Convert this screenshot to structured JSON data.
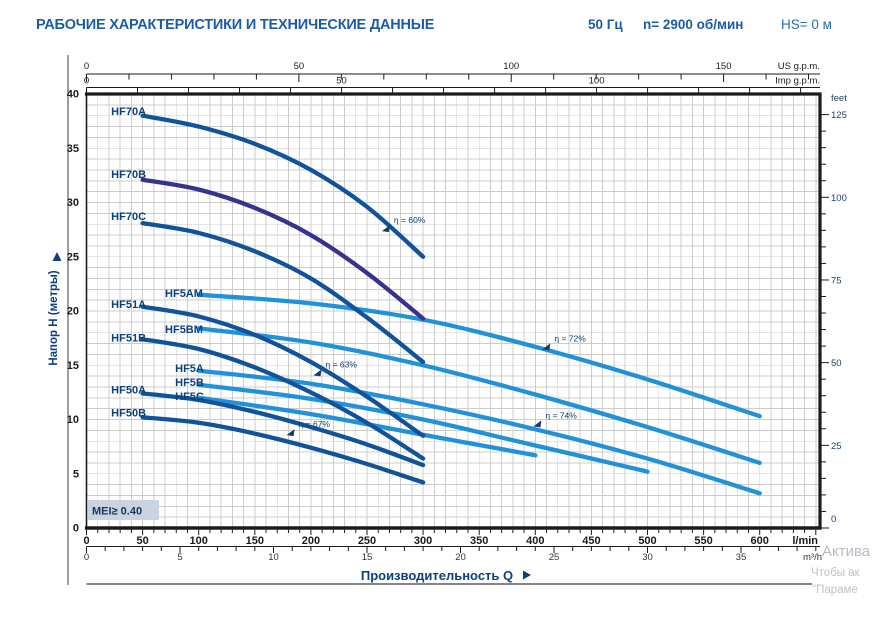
{
  "header": {
    "title": "РАБОЧИЕ ХАРАКТЕРИСТИКИ И ТЕХНИЧЕСКИЕ ДАННЫЕ",
    "frequency": "50 Гц",
    "speed": "n= 2900 об/мин",
    "suction": "HS= 0 м"
  },
  "colors": {
    "title_blue": "#1b5ca8",
    "curve_navy": "#11539b",
    "curve_purple": "#38328f",
    "curve_light_blue": "#2191d9",
    "grid": "#cccccc",
    "axis_black": "#1b1b1b",
    "pump_label_navy": "#0b3f7e",
    "efficiency_navy": "#123c6e",
    "feet_label": "#1f4166",
    "mei_bg": "#c9d4df",
    "mei_text": "#17365f",
    "watermark_gray": "#bcc2c9"
  },
  "mei_label": "MEI≥ 0.40",
  "watermark": {
    "line1": "Актива",
    "line2": "Чтобы ак",
    "line3": "\"Параме"
  },
  "chart_data": {
    "type": "line",
    "xlabel": "Производительность Q",
    "ylabel": "Напор H (метры)",
    "x_range_l_min": [
      0,
      650
    ],
    "y_range_m": [
      0,
      40
    ],
    "grid": "on",
    "x_axes": {
      "us_gpm": {
        "unit": "US g.p.m.",
        "ticks": [
          0,
          50,
          100,
          150
        ],
        "minor_step": 10,
        "max": 170
      },
      "imp_gpm": {
        "unit": "Imp g.p.m.",
        "ticks": [
          0,
          50,
          100
        ],
        "minor_step": 10,
        "max": 140
      },
      "l_min": {
        "unit": "l/min",
        "ticks": [
          0,
          50,
          100,
          150,
          200,
          250,
          300,
          350,
          400,
          450,
          500,
          550,
          600
        ],
        "minor_step": 10,
        "max": 650
      },
      "m3_h": {
        "unit": "m³/h",
        "ticks": [
          0,
          5,
          10,
          15,
          20,
          25,
          30,
          35
        ],
        "minor_step": 1,
        "max": 39
      }
    },
    "y_axes": {
      "meters": {
        "ticks": [
          0,
          5,
          10,
          15,
          20,
          25,
          30,
          35,
          40
        ]
      },
      "feet": {
        "unit": "feet",
        "ticks": [
          0,
          25,
          50,
          75,
          100,
          125
        ],
        "minor_step": 5,
        "max": 125
      }
    },
    "series": [
      {
        "name": "HF70A",
        "color_role": "navy",
        "label_q": 22,
        "label_h": 38.4,
        "points": [
          [
            50,
            38.0
          ],
          [
            100,
            37.0
          ],
          [
            150,
            35.4
          ],
          [
            200,
            33.0
          ],
          [
            250,
            29.6
          ],
          [
            300,
            25.0
          ]
        ]
      },
      {
        "name": "HF70B",
        "color_role": "purple",
        "label_q": 22,
        "label_h": 32.6,
        "points": [
          [
            50,
            32.1
          ],
          [
            100,
            31.2
          ],
          [
            150,
            29.5
          ],
          [
            200,
            27.0
          ],
          [
            250,
            23.5
          ],
          [
            300,
            19.3
          ]
        ]
      },
      {
        "name": "HF70C",
        "color_role": "navy",
        "label_q": 22,
        "label_h": 28.7,
        "points": [
          [
            50,
            28.1
          ],
          [
            100,
            27.2
          ],
          [
            150,
            25.5
          ],
          [
            200,
            23.0
          ],
          [
            250,
            19.4
          ],
          [
            300,
            15.3
          ]
        ]
      },
      {
        "name": "HF5AM",
        "color_role": "light",
        "label_q": 70,
        "label_h": 21.6,
        "points": [
          [
            100,
            21.5
          ],
          [
            200,
            20.7
          ],
          [
            300,
            19.2
          ],
          [
            400,
            16.7
          ],
          [
            500,
            13.7
          ],
          [
            600,
            10.3
          ]
        ]
      },
      {
        "name": "HF51A",
        "color_role": "navy",
        "label_q": 22,
        "label_h": 20.6,
        "points": [
          [
            50,
            20.4
          ],
          [
            100,
            19.5
          ],
          [
            150,
            17.8
          ],
          [
            200,
            15.3
          ],
          [
            250,
            12.1
          ],
          [
            300,
            8.5
          ]
        ]
      },
      {
        "name": "HF5BM",
        "color_role": "light",
        "label_q": 70,
        "label_h": 18.3,
        "points": [
          [
            100,
            18.4
          ],
          [
            200,
            17.1
          ],
          [
            300,
            15.0
          ],
          [
            400,
            12.3
          ],
          [
            500,
            9.3
          ],
          [
            600,
            6.0
          ]
        ]
      },
      {
        "name": "HF51B",
        "color_role": "navy",
        "label_q": 22,
        "label_h": 17.5,
        "points": [
          [
            50,
            17.4
          ],
          [
            100,
            16.5
          ],
          [
            150,
            14.8
          ],
          [
            200,
            12.5
          ],
          [
            250,
            9.7
          ],
          [
            300,
            6.4
          ]
        ]
      },
      {
        "name": "HF5A",
        "color_role": "light",
        "label_q": 79,
        "label_h": 14.7,
        "points": [
          [
            100,
            14.5
          ],
          [
            200,
            13.3
          ],
          [
            300,
            11.4
          ],
          [
            400,
            9.1
          ],
          [
            500,
            6.4
          ],
          [
            600,
            3.2
          ]
        ]
      },
      {
        "name": "HF5B",
        "color_role": "light",
        "label_q": 79,
        "label_h": 13.4,
        "points": [
          [
            100,
            13.2
          ],
          [
            200,
            11.9
          ],
          [
            300,
            10.0
          ],
          [
            400,
            7.6
          ],
          [
            500,
            5.2
          ]
        ]
      },
      {
        "name": "HF5C",
        "color_role": "light",
        "label_q": 79,
        "label_h": 12.1,
        "points": [
          [
            100,
            12.0
          ],
          [
            200,
            10.5
          ],
          [
            300,
            8.6
          ],
          [
            400,
            6.7
          ]
        ]
      },
      {
        "name": "HF50A",
        "color_role": "navy",
        "label_q": 22,
        "label_h": 12.7,
        "points": [
          [
            50,
            12.4
          ],
          [
            100,
            11.8
          ],
          [
            150,
            10.7
          ],
          [
            200,
            9.3
          ],
          [
            250,
            7.7
          ],
          [
            300,
            5.8
          ]
        ]
      },
      {
        "name": "HF50B",
        "color_role": "navy",
        "label_q": 22,
        "label_h": 10.6,
        "points": [
          [
            50,
            10.2
          ],
          [
            100,
            9.7
          ],
          [
            150,
            8.7
          ],
          [
            200,
            7.4
          ],
          [
            250,
            5.9
          ],
          [
            300,
            4.2
          ]
        ]
      }
    ],
    "efficiency_labels": [
      {
        "text": "η = 60%",
        "q": 274,
        "h": 28.1
      },
      {
        "text": "η = 72%",
        "q": 417,
        "h": 17.2
      },
      {
        "text": "η = 63%",
        "q": 213,
        "h": 14.8
      },
      {
        "text": "η = 74%",
        "q": 409,
        "h": 10.1
      },
      {
        "text": "η = 67%",
        "q": 189,
        "h": 9.3
      }
    ]
  }
}
